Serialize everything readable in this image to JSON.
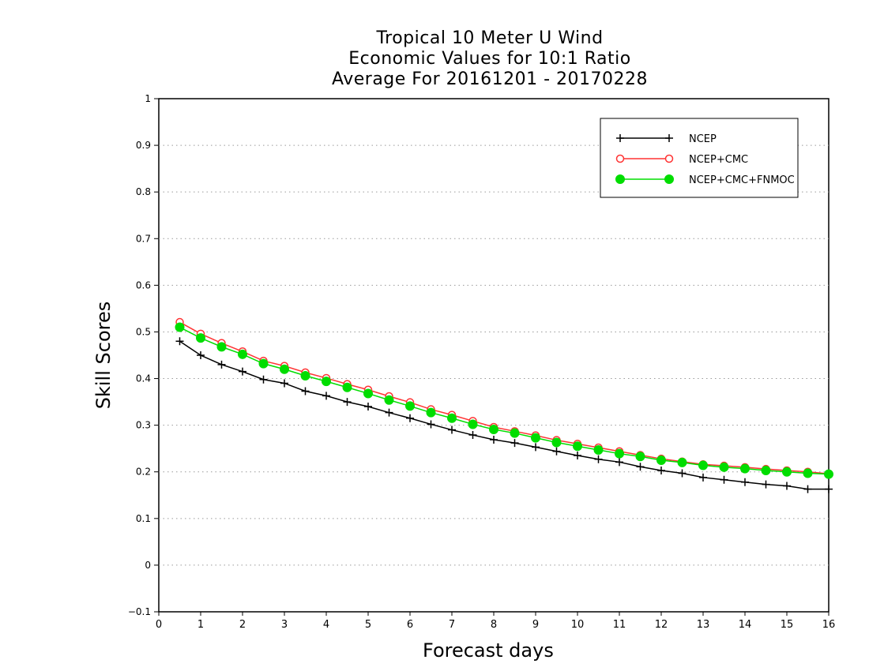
{
  "chart_data": {
    "type": "line",
    "title": [
      "Tropical 10 Meter U Wind",
      "Economic Values for 10:1 Ratio",
      "Average For 20161201 - 20170228"
    ],
    "xlabel": "Forecast days",
    "ylabel": "Skill Scores",
    "xlim": [
      0,
      16
    ],
    "ylim": [
      -0.1,
      1
    ],
    "xticks": [
      "0",
      "1",
      "2",
      "3",
      "4",
      "5",
      "6",
      "7",
      "8",
      "9",
      "10",
      "11",
      "12",
      "13",
      "14",
      "15",
      "16"
    ],
    "yticks": [
      "-0.1",
      "0",
      "0.1",
      "0.2",
      "0.3",
      "0.4",
      "0.5",
      "0.6",
      "0.7",
      "0.8",
      "0.9",
      "1"
    ],
    "grid": "horizontal dotted",
    "legend": "top-right",
    "x": [
      0.5,
      1,
      1.5,
      2,
      2.5,
      3,
      3.5,
      4,
      4.5,
      5,
      5.5,
      6,
      6.5,
      7,
      7.5,
      8,
      8.5,
      9,
      9.5,
      10,
      10.5,
      11,
      11.5,
      12,
      12.5,
      13,
      13.5,
      14,
      14.5,
      15,
      15.5,
      16
    ],
    "series": [
      {
        "name": "NCEP",
        "color": "#000000",
        "marker": "plus",
        "values": [
          0.48,
          0.45,
          0.43,
          0.415,
          0.398,
          0.39,
          0.373,
          0.363,
          0.35,
          0.34,
          0.327,
          0.315,
          0.302,
          0.29,
          0.279,
          0.269,
          0.262,
          0.253,
          0.244,
          0.235,
          0.227,
          0.221,
          0.211,
          0.203,
          0.197,
          0.188,
          0.183,
          0.178,
          0.173,
          0.17,
          0.163,
          0.163
        ]
      },
      {
        "name": "NCEP+CMC",
        "color": "#ff3333",
        "marker": "open-circle",
        "values": [
          0.521,
          0.496,
          0.476,
          0.458,
          0.438,
          0.427,
          0.413,
          0.401,
          0.388,
          0.376,
          0.362,
          0.349,
          0.334,
          0.322,
          0.309,
          0.296,
          0.287,
          0.278,
          0.268,
          0.26,
          0.252,
          0.244,
          0.236,
          0.228,
          0.222,
          0.216,
          0.213,
          0.21,
          0.206,
          0.203,
          0.2,
          0.196
        ]
      },
      {
        "name": "NCEP+CMC+FNMOC",
        "color": "#00dd00",
        "marker": "filled-circle",
        "values": [
          0.51,
          0.487,
          0.468,
          0.452,
          0.432,
          0.42,
          0.406,
          0.394,
          0.381,
          0.368,
          0.354,
          0.341,
          0.327,
          0.315,
          0.302,
          0.291,
          0.283,
          0.273,
          0.263,
          0.255,
          0.247,
          0.239,
          0.233,
          0.225,
          0.22,
          0.214,
          0.21,
          0.207,
          0.203,
          0.2,
          0.197,
          0.195
        ]
      }
    ]
  }
}
